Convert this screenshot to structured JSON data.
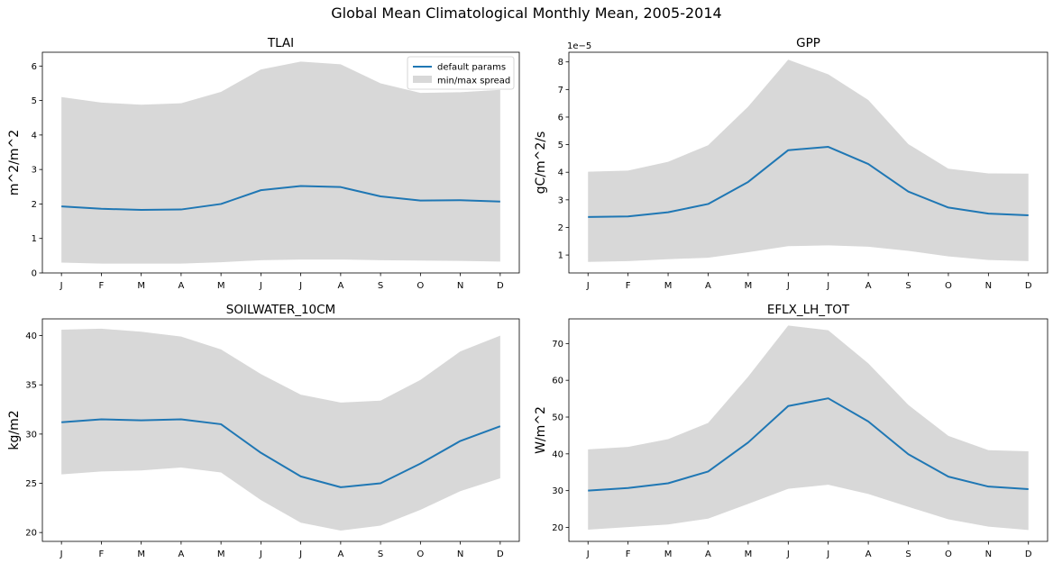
{
  "figure": {
    "title": "Global Mean Climatological Monthly Mean, 2005-2014"
  },
  "legend": {
    "line_label": "default params",
    "band_label": "min/max spread"
  },
  "colors": {
    "line": "#1f77b4",
    "band": "#d8d8d8",
    "axes": "#000000"
  },
  "chart_data": [
    {
      "type": "line",
      "title": "TLAI",
      "ylabel": "m^2/m^2",
      "ylim": [
        0,
        6.4
      ],
      "yticks": [
        0,
        1,
        2,
        3,
        4,
        5,
        6
      ],
      "offset_text": "",
      "legend": "top-right",
      "x": [
        "J",
        "F",
        "M",
        "A",
        "M",
        "J",
        "J",
        "A",
        "S",
        "O",
        "N",
        "D"
      ],
      "series": [
        {
          "name": "default params",
          "values": [
            1.93,
            1.86,
            1.83,
            1.84,
            2.0,
            2.4,
            2.52,
            2.49,
            2.22,
            2.1,
            2.11,
            2.07
          ]
        },
        {
          "name": "min/max spread",
          "lower": [
            0.3,
            0.27,
            0.27,
            0.27,
            0.31,
            0.37,
            0.39,
            0.39,
            0.37,
            0.36,
            0.35,
            0.33
          ],
          "upper": [
            5.1,
            4.94,
            4.88,
            4.92,
            5.25,
            5.9,
            6.13,
            6.05,
            5.5,
            5.22,
            5.24,
            5.31
          ]
        }
      ]
    },
    {
      "type": "line",
      "title": "GPP",
      "ylabel": "gC/m^2/s",
      "ylim": [
        0.35,
        8.35
      ],
      "yticks": [
        1,
        2,
        3,
        4,
        5,
        6,
        7,
        8
      ],
      "offset_text": "1e−5",
      "legend": "none",
      "x": [
        "J",
        "F",
        "M",
        "A",
        "M",
        "J",
        "J",
        "A",
        "S",
        "O",
        "N",
        "D"
      ],
      "series": [
        {
          "name": "default params",
          "values": [
            2.38,
            2.4,
            2.55,
            2.85,
            3.65,
            4.8,
            4.92,
            4.3,
            3.3,
            2.72,
            2.5,
            2.44
          ]
        },
        {
          "name": "min/max spread",
          "lower": [
            0.75,
            0.78,
            0.85,
            0.9,
            1.1,
            1.32,
            1.35,
            1.3,
            1.15,
            0.95,
            0.82,
            0.78
          ],
          "upper": [
            4.02,
            4.06,
            4.38,
            4.98,
            6.38,
            8.08,
            7.55,
            6.62,
            5.02,
            4.13,
            3.96,
            3.95
          ]
        }
      ]
    },
    {
      "type": "line",
      "title": "SOILWATER_10CM",
      "ylabel": "kg/m2",
      "ylim": [
        19.1,
        41.7
      ],
      "yticks": [
        20,
        25,
        30,
        35,
        40
      ],
      "offset_text": "",
      "legend": "none",
      "x": [
        "J",
        "F",
        "M",
        "A",
        "M",
        "J",
        "J",
        "A",
        "S",
        "O",
        "N",
        "D"
      ],
      "series": [
        {
          "name": "default params",
          "values": [
            31.2,
            31.5,
            31.4,
            31.5,
            31.0,
            28.1,
            25.7,
            24.6,
            25.0,
            27.0,
            29.3,
            30.8
          ]
        },
        {
          "name": "min/max spread",
          "lower": [
            25.9,
            26.2,
            26.3,
            26.6,
            26.1,
            23.3,
            21.0,
            20.2,
            20.7,
            22.3,
            24.2,
            25.5
          ],
          "upper": [
            40.6,
            40.7,
            40.4,
            39.9,
            38.6,
            36.1,
            34.0,
            33.2,
            33.4,
            35.5,
            38.4,
            40.0
          ]
        }
      ]
    },
    {
      "type": "line",
      "title": "EFLX_LH_TOT",
      "ylabel": "W/m^2",
      "ylim": [
        16.2,
        76.7
      ],
      "yticks": [
        20,
        30,
        40,
        50,
        60,
        70
      ],
      "offset_text": "",
      "legend": "none",
      "x": [
        "J",
        "F",
        "M",
        "A",
        "M",
        "J",
        "J",
        "A",
        "S",
        "O",
        "N",
        "D"
      ],
      "series": [
        {
          "name": "default params",
          "values": [
            30.0,
            30.7,
            32.0,
            35.2,
            43.1,
            53.0,
            55.1,
            48.8,
            39.9,
            33.8,
            31.1,
            30.4
          ]
        },
        {
          "name": "min/max spread",
          "lower": [
            19.4,
            20.1,
            20.8,
            22.4,
            26.4,
            30.5,
            31.6,
            29.1,
            25.6,
            22.2,
            20.2,
            19.3
          ],
          "upper": [
            41.2,
            41.9,
            44.0,
            48.4,
            61.0,
            74.9,
            73.6,
            64.6,
            53.3,
            44.9,
            41.0,
            40.7
          ]
        }
      ]
    }
  ]
}
